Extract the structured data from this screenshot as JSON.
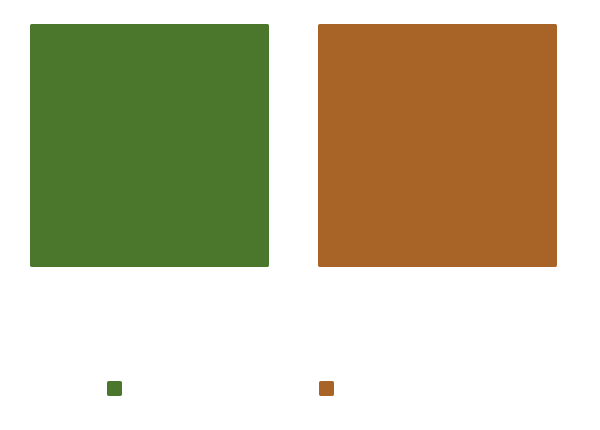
{
  "swatches": {
    "left": {
      "color": "#4a772c"
    },
    "right": {
      "color": "#a86326"
    }
  }
}
